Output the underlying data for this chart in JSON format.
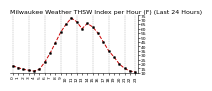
{
  "title": "Milwaukee Weather THSW Index per Hour (F) (Last 24 Hours)",
  "hours": [
    0,
    1,
    2,
    3,
    4,
    5,
    6,
    7,
    8,
    9,
    10,
    11,
    12,
    13,
    14,
    15,
    16,
    17,
    18,
    19,
    20,
    21,
    22,
    23
  ],
  "values": [
    18,
    16,
    14,
    13,
    12,
    14,
    22,
    32,
    44,
    56,
    65,
    72,
    68,
    60,
    66,
    62,
    55,
    45,
    35,
    28,
    20,
    15,
    12,
    11
  ],
  "ylim": [
    10,
    75
  ],
  "ytick_labels": [
    "75",
    "70",
    "65",
    "60",
    "55",
    "50",
    "45",
    "40",
    "35",
    "30",
    "25",
    "20",
    "15",
    "10"
  ],
  "ytick_values": [
    75,
    70,
    65,
    60,
    55,
    50,
    45,
    40,
    35,
    30,
    25,
    20,
    15,
    10
  ],
  "vgrid_positions": [
    0,
    3,
    6,
    9,
    12,
    15,
    18,
    21,
    23
  ],
  "line_color": "#cc0000",
  "marker_color": "#000000",
  "bg_color": "#ffffff",
  "grid_color": "#999999",
  "title_fontsize": 4.5,
  "tick_fontsize": 3.2,
  "linewidth": 0.7,
  "markersize": 1.2
}
